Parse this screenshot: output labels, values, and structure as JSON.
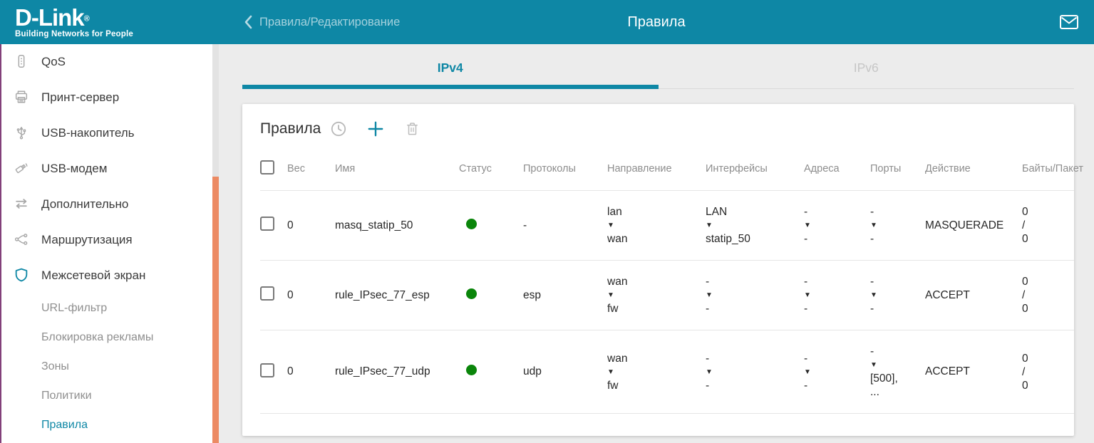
{
  "palette": {
    "header_teal": "#0e87a5",
    "accent_teal": "#0e87a5",
    "status_green": "#0a850a",
    "scrollbar_orange": "#ec8a63",
    "sidebar_edge_purple": "#82407a"
  },
  "brand": {
    "logo_text": "D-Link",
    "registered_mark": "®",
    "tagline": "Building Networks for People"
  },
  "header": {
    "breadcrumb": "Правила/Редактирование",
    "title": "Правила"
  },
  "tabs": [
    {
      "id": "ipv4",
      "label": "IPv4",
      "active": true
    },
    {
      "id": "ipv6",
      "label": "IPv6",
      "active": false
    }
  ],
  "sidebar": {
    "items": [
      {
        "id": "qos",
        "label": "QoS",
        "icon": "qos-icon",
        "level": 1
      },
      {
        "id": "print-server",
        "label": "Принт-сервер",
        "icon": "printer-icon",
        "level": 1
      },
      {
        "id": "usb-storage",
        "label": "USB-накопитель",
        "icon": "usb-icon",
        "level": 1
      },
      {
        "id": "usb-modem",
        "label": "USB-модем",
        "icon": "usb-modem-icon",
        "level": 1
      },
      {
        "id": "advanced",
        "label": "Дополнительно",
        "icon": "transfer-arrows-icon",
        "level": 1
      },
      {
        "id": "routing",
        "label": "Маршрутизация",
        "icon": "route-icon",
        "level": 1
      },
      {
        "id": "firewall",
        "label": "Межсетевой экран",
        "icon": "shield-icon",
        "level": 1
      },
      {
        "id": "url-filter",
        "label": "URL-фильтр",
        "level": 2
      },
      {
        "id": "ad-block",
        "label": "Блокировка рекламы",
        "level": 2
      },
      {
        "id": "zones",
        "label": "Зоны",
        "level": 2
      },
      {
        "id": "policies",
        "label": "Политики",
        "level": 2
      },
      {
        "id": "rules",
        "label": "Правила",
        "level": 2,
        "active": true
      }
    ]
  },
  "card": {
    "title": "Правила"
  },
  "table": {
    "headers": [
      "Вес",
      "Имя",
      "Статус",
      "Протоколы",
      "Направление",
      "Интерфейсы",
      "Адреса",
      "Порты",
      "Действие",
      "Байты/Пакет"
    ],
    "rows": [
      {
        "checked": false,
        "weight": "0",
        "name": "masq_statip_50",
        "status": "enabled",
        "protocols": "-",
        "direction": [
          "lan",
          "▼",
          "wan"
        ],
        "interfaces": [
          "LAN",
          "▼",
          "statip_50"
        ],
        "addresses": [
          "-",
          "▼",
          "-"
        ],
        "ports": [
          "-",
          "▼",
          "-"
        ],
        "action": "MASQUERADE",
        "bytes_packets": [
          "0",
          "/",
          "0"
        ]
      },
      {
        "checked": false,
        "weight": "0",
        "name": "rule_IPsec_77_esp",
        "status": "enabled",
        "protocols": "esp",
        "direction": [
          "wan",
          "▼",
          "fw"
        ],
        "interfaces": [
          "-",
          "▼",
          "-"
        ],
        "addresses": [
          "-",
          "▼",
          "-"
        ],
        "ports": [
          "-",
          "▼",
          "-"
        ],
        "action": "ACCEPT",
        "bytes_packets": [
          "0",
          "/",
          "0"
        ]
      },
      {
        "checked": false,
        "weight": "0",
        "name": "rule_IPsec_77_udp",
        "status": "enabled",
        "protocols": "udp",
        "direction": [
          "wan",
          "▼",
          "fw"
        ],
        "interfaces": [
          "-",
          "▼",
          "-"
        ],
        "addresses": [
          "-",
          "▼",
          "-"
        ],
        "ports": [
          "-",
          "▼",
          "[500],",
          "..."
        ],
        "action": "ACCEPT",
        "bytes_packets": [
          "0",
          "/",
          "0"
        ]
      }
    ]
  }
}
